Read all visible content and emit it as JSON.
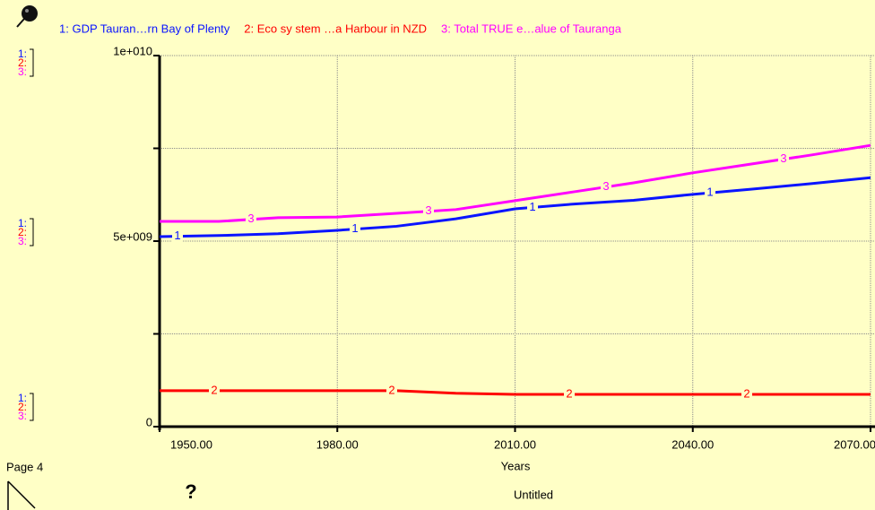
{
  "chart_data": {
    "type": "line",
    "x_label": "Years",
    "page_label": "Page 4",
    "document_title": "Untitled",
    "help_icon": "?",
    "scale_keys": [
      "1:",
      "2:",
      "3:"
    ],
    "x": [
      1950,
      1960,
      1970,
      1980,
      1990,
      2000,
      2010,
      2020,
      2030,
      2040,
      2050,
      2060,
      2070
    ],
    "xlim": [
      1950,
      2070
    ],
    "xticks": [
      {
        "value": 1950,
        "label": "1950.00"
      },
      {
        "value": 1980,
        "label": "1980.00"
      },
      {
        "value": 2010,
        "label": "2010.00"
      },
      {
        "value": 2040,
        "label": "2040.00"
      },
      {
        "value": 2070,
        "label": "2070.00"
      }
    ],
    "ylim": [
      0,
      10000000000
    ],
    "yticks": [
      0,
      {
        "value": 5000000000,
        "label": "5e+009"
      },
      {
        "value": 10000000000,
        "label": "1e+010"
      }
    ],
    "yminorticks": [
      2500000000,
      7500000000
    ],
    "grid": true,
    "series": [
      {
        "name": "1: GDP  Tauran…rn Bay of Plenty",
        "marker_label": "1",
        "color": "#0a14ff",
        "values": [
          5120000000,
          5150000000,
          5200000000,
          5290000000,
          5400000000,
          5600000000,
          5870000000,
          6000000000,
          6100000000,
          6260000000,
          6400000000,
          6550000000,
          6710000000
        ]
      },
      {
        "name": "2: Eco sy stem …a Harbour in NZD",
        "marker_label": "2",
        "color": "#ff0000",
        "values": [
          970000000,
          970000000,
          970000000,
          970000000,
          970000000,
          900000000,
          870000000,
          870000000,
          870000000,
          870000000,
          870000000,
          870000000,
          870000000
        ]
      },
      {
        "name": "3: Total TRUE e…alue of Tauranga",
        "marker_label": "3",
        "color": "#ff00ff",
        "values": [
          5530000000,
          5530000000,
          5630000000,
          5650000000,
          5750000000,
          5850000000,
          6090000000,
          6330000000,
          6570000000,
          6840000000,
          7080000000,
          7320000000,
          7580000000
        ]
      }
    ]
  }
}
